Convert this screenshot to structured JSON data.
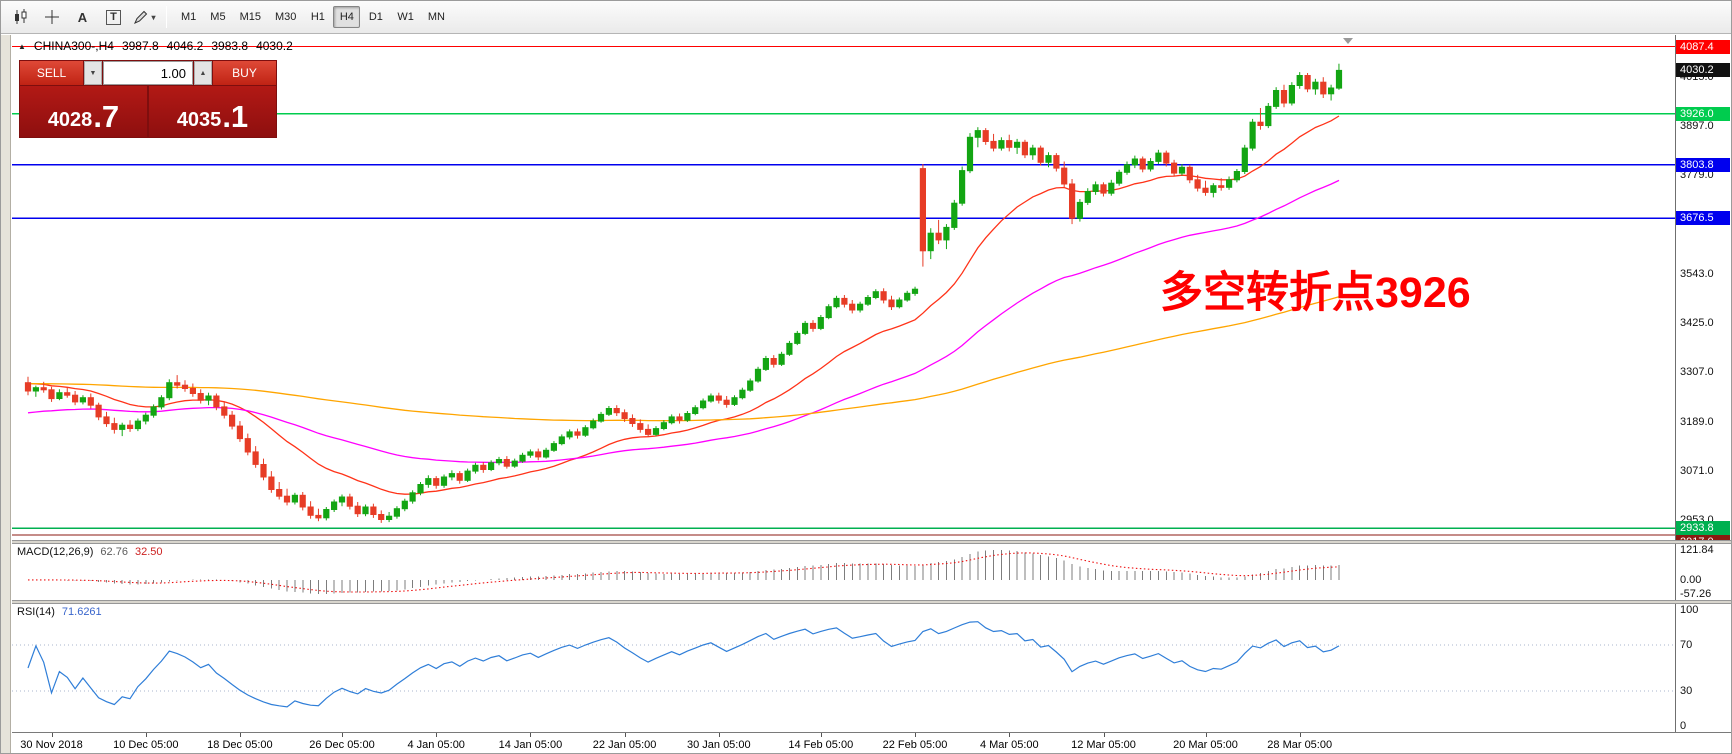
{
  "toolbar": {
    "icons": [
      {
        "name": "candlestick-chart-icon",
        "type": "candles"
      },
      {
        "name": "crosshair-icon",
        "type": "crosshair"
      },
      {
        "name": "text-annotation-icon",
        "type": "letter",
        "glyph": "A"
      },
      {
        "name": "text-label-icon",
        "type": "boxed-letter",
        "glyph": "T"
      },
      {
        "name": "drawing-tools-icon",
        "type": "pen",
        "dropdown": "▾"
      }
    ],
    "timeframes": [
      "M1",
      "M5",
      "M15",
      "M30",
      "H1",
      "H4",
      "D1",
      "W1",
      "MN"
    ],
    "active_timeframe": "H4"
  },
  "chart": {
    "header": {
      "arrow_glyph": "▲",
      "symbol_period": "CHINA300-,H4",
      "open": "3987.8",
      "high": "4046.2",
      "low": "3983.8",
      "close": "4030.2"
    },
    "trade_panel": {
      "sell_label": "SELL",
      "buy_label": "BUY",
      "volume": "1.00",
      "down_glyph": "▼",
      "up_glyph": "▲",
      "bid_main": "4028",
      "bid_big": ".7",
      "ask_main": "4035",
      "ask_big": ".1"
    }
  },
  "chart_data": {
    "type": "candlestick",
    "symbol": "CHINA300-",
    "timeframe": "H4",
    "candle_colors": {
      "up": "#13a513",
      "down": "#e73c26"
    },
    "current_price": {
      "v": 4030.2,
      "label": "4030.2",
      "bg": "#111111"
    },
    "annotation": {
      "text": "多空转折点3926",
      "color": "#ff0000"
    },
    "horizontal_lines": [
      {
        "v": 4087.4,
        "label": "4087.4",
        "color": "#ff0000",
        "w": 1.2
      },
      {
        "v": 3926.0,
        "label": "3926.0",
        "color": "#00cc4e",
        "w": 1.5
      },
      {
        "v": 3803.8,
        "label": "3803.8",
        "color": "#0000ee",
        "w": 1.5
      },
      {
        "v": 3676.5,
        "label": "3676.5",
        "color": "#0000ee",
        "w": 1.5
      },
      {
        "v": 2933.8,
        "label": "2933.8",
        "color": "#00b050",
        "w": 1.5
      },
      {
        "v": 2917.0,
        "label": "2917.0",
        "color": "#8b1a10",
        "w": 1.2
      }
    ],
    "y_axis": {
      "visible_range": [
        2905,
        4115
      ],
      "ticks": [
        {
          "v": 4015.0,
          "label": "4015.0"
        },
        {
          "v": 3897.0,
          "label": "3897.0"
        },
        {
          "v": 3779.0,
          "label": "3779.0"
        },
        {
          "v": 3543.0,
          "label": "3543.0"
        },
        {
          "v": 3425.0,
          "label": "3425.0"
        },
        {
          "v": 3307.0,
          "label": "3307.0"
        },
        {
          "v": 3189.0,
          "label": "3189.0"
        },
        {
          "v": 3071.0,
          "label": "3071.0"
        },
        {
          "v": 2953.0,
          "label": "2953.0"
        }
      ]
    },
    "x_axis": {
      "ticks": [
        {
          "label": "30 Nov 2018",
          "i": 3
        },
        {
          "label": "10 Dec 05:00",
          "i": 15
        },
        {
          "label": "18 Dec 05:00",
          "i": 27
        },
        {
          "label": "26 Dec 05:00",
          "i": 40
        },
        {
          "label": "4 Jan 05:00",
          "i": 52
        },
        {
          "label": "14 Jan 05:00",
          "i": 64
        },
        {
          "label": "22 Jan 05:00",
          "i": 76
        },
        {
          "label": "30 Jan 05:00",
          "i": 88
        },
        {
          "label": "14 Feb 05:00",
          "i": 101
        },
        {
          "label": "22 Feb 05:00",
          "i": 113
        },
        {
          "label": "4 Mar 05:00",
          "i": 125
        },
        {
          "label": "12 Mar 05:00",
          "i": 137
        },
        {
          "label": "20 Mar 05:00",
          "i": 150
        },
        {
          "label": "28 Mar 05:00",
          "i": 162
        }
      ]
    },
    "moving_averages": [
      {
        "name": "ma-fast-red",
        "period": 20,
        "seed": 3282,
        "color": "#ff3319"
      },
      {
        "name": "ma-mid-magenta",
        "period": 60,
        "seed": 3208,
        "color": "#ff00ff"
      },
      {
        "name": "ma-slow-orange",
        "period": 200,
        "seed": 3280,
        "color": "#ffa500"
      }
    ],
    "candles": [
      [
        3282,
        3296,
        3252,
        3262
      ],
      [
        3262,
        3275,
        3248,
        3270
      ],
      [
        3270,
        3284,
        3258,
        3265
      ],
      [
        3265,
        3272,
        3236,
        3244
      ],
      [
        3244,
        3266,
        3240,
        3258
      ],
      [
        3258,
        3270,
        3246,
        3252
      ],
      [
        3252,
        3262,
        3228,
        3236
      ],
      [
        3236,
        3252,
        3230,
        3246
      ],
      [
        3246,
        3256,
        3220,
        3228
      ],
      [
        3228,
        3234,
        3192,
        3200
      ],
      [
        3200,
        3212,
        3176,
        3184
      ],
      [
        3184,
        3198,
        3160,
        3170
      ],
      [
        3170,
        3186,
        3154,
        3180
      ],
      [
        3180,
        3192,
        3164,
        3172
      ],
      [
        3172,
        3196,
        3166,
        3190
      ],
      [
        3190,
        3210,
        3182,
        3204
      ],
      [
        3204,
        3230,
        3198,
        3224
      ],
      [
        3224,
        3252,
        3218,
        3246
      ],
      [
        3246,
        3290,
        3240,
        3282
      ],
      [
        3282,
        3300,
        3268,
        3276
      ],
      [
        3276,
        3288,
        3260,
        3268
      ],
      [
        3268,
        3280,
        3248,
        3256
      ],
      [
        3256,
        3266,
        3232,
        3240
      ],
      [
        3240,
        3258,
        3228,
        3250
      ],
      [
        3250,
        3256,
        3216,
        3224
      ],
      [
        3224,
        3236,
        3196,
        3204
      ],
      [
        3204,
        3214,
        3170,
        3178
      ],
      [
        3178,
        3190,
        3140,
        3148
      ],
      [
        3148,
        3160,
        3108,
        3116
      ],
      [
        3116,
        3130,
        3078,
        3086
      ],
      [
        3086,
        3100,
        3048,
        3056
      ],
      [
        3056,
        3070,
        3018,
        3026
      ],
      [
        3026,
        3044,
        3002,
        3010
      ],
      [
        3010,
        3028,
        2988,
        2996
      ],
      [
        2996,
        3018,
        2990,
        3012
      ],
      [
        3012,
        3020,
        2976,
        2984
      ],
      [
        2984,
        2998,
        2956,
        2964
      ],
      [
        2964,
        2980,
        2950,
        2958
      ],
      [
        2958,
        2984,
        2952,
        2978
      ],
      [
        2978,
        3002,
        2972,
        2996
      ],
      [
        2996,
        3014,
        2986,
        3008
      ],
      [
        3008,
        3016,
        2978,
        2986
      ],
      [
        2986,
        2996,
        2960,
        2968
      ],
      [
        2968,
        2990,
        2962,
        2984
      ],
      [
        2984,
        2992,
        2958,
        2966
      ],
      [
        2966,
        2976,
        2946,
        2954
      ],
      [
        2954,
        2972,
        2948,
        2962
      ],
      [
        2962,
        2986,
        2956,
        2980
      ],
      [
        2980,
        3004,
        2974,
        2998
      ],
      [
        2998,
        3024,
        2992,
        3018
      ],
      [
        3018,
        3044,
        3012,
        3038
      ],
      [
        3038,
        3060,
        3030,
        3052
      ],
      [
        3052,
        3058,
        3028,
        3036
      ],
      [
        3036,
        3062,
        3030,
        3056
      ],
      [
        3056,
        3072,
        3048,
        3064
      ],
      [
        3064,
        3070,
        3040,
        3048
      ],
      [
        3048,
        3076,
        3044,
        3070
      ],
      [
        3070,
        3090,
        3064,
        3084
      ],
      [
        3084,
        3092,
        3066,
        3074
      ],
      [
        3074,
        3096,
        3070,
        3090
      ],
      [
        3090,
        3104,
        3084,
        3098
      ],
      [
        3098,
        3106,
        3076,
        3082
      ],
      [
        3082,
        3100,
        3078,
        3094
      ],
      [
        3094,
        3114,
        3090,
        3108
      ],
      [
        3108,
        3122,
        3102,
        3116
      ],
      [
        3116,
        3124,
        3096,
        3104
      ],
      [
        3104,
        3126,
        3100,
        3120
      ],
      [
        3120,
        3142,
        3116,
        3136
      ],
      [
        3136,
        3158,
        3132,
        3152
      ],
      [
        3152,
        3170,
        3146,
        3164
      ],
      [
        3164,
        3172,
        3148,
        3156
      ],
      [
        3156,
        3180,
        3152,
        3174
      ],
      [
        3174,
        3196,
        3170,
        3190
      ],
      [
        3190,
        3212,
        3186,
        3206
      ],
      [
        3206,
        3226,
        3202,
        3220
      ],
      [
        3220,
        3228,
        3202,
        3210
      ],
      [
        3210,
        3218,
        3188,
        3196
      ],
      [
        3196,
        3206,
        3176,
        3184
      ],
      [
        3184,
        3194,
        3162,
        3170
      ],
      [
        3170,
        3182,
        3152,
        3158
      ],
      [
        3158,
        3178,
        3154,
        3172
      ],
      [
        3172,
        3192,
        3168,
        3186
      ],
      [
        3186,
        3206,
        3182,
        3200
      ],
      [
        3200,
        3208,
        3184,
        3192
      ],
      [
        3192,
        3214,
        3188,
        3208
      ],
      [
        3208,
        3228,
        3204,
        3222
      ],
      [
        3222,
        3244,
        3218,
        3238
      ],
      [
        3238,
        3256,
        3234,
        3250
      ],
      [
        3250,
        3258,
        3232,
        3240
      ],
      [
        3240,
        3250,
        3222,
        3230
      ],
      [
        3230,
        3252,
        3226,
        3246
      ],
      [
        3246,
        3270,
        3242,
        3264
      ],
      [
        3264,
        3292,
        3260,
        3286
      ],
      [
        3286,
        3320,
        3282,
        3314
      ],
      [
        3314,
        3346,
        3310,
        3340
      ],
      [
        3340,
        3348,
        3318,
        3326
      ],
      [
        3326,
        3356,
        3322,
        3350
      ],
      [
        3350,
        3382,
        3346,
        3376
      ],
      [
        3376,
        3406,
        3372,
        3400
      ],
      [
        3400,
        3430,
        3396,
        3424
      ],
      [
        3424,
        3432,
        3404,
        3412
      ],
      [
        3412,
        3444,
        3408,
        3438
      ],
      [
        3438,
        3470,
        3434,
        3464
      ],
      [
        3464,
        3490,
        3460,
        3484
      ],
      [
        3484,
        3492,
        3462,
        3470
      ],
      [
        3470,
        3480,
        3448,
        3456
      ],
      [
        3456,
        3476,
        3450,
        3470
      ],
      [
        3470,
        3492,
        3466,
        3486
      ],
      [
        3486,
        3506,
        3482,
        3500
      ],
      [
        3500,
        3508,
        3472,
        3480
      ],
      [
        3480,
        3490,
        3456,
        3464
      ],
      [
        3464,
        3486,
        3460,
        3480
      ],
      [
        3480,
        3502,
        3476,
        3496
      ],
      [
        3496,
        3512,
        3490,
        3506
      ],
      [
        3795,
        3806,
        3560,
        3598
      ],
      [
        3598,
        3652,
        3578,
        3640
      ],
      [
        3640,
        3672,
        3614,
        3624
      ],
      [
        3624,
        3662,
        3602,
        3654
      ],
      [
        3654,
        3720,
        3648,
        3712
      ],
      [
        3712,
        3800,
        3706,
        3790
      ],
      [
        3790,
        3880,
        3784,
        3870
      ],
      [
        3870,
        3894,
        3846,
        3886
      ],
      [
        3886,
        3892,
        3852,
        3860
      ],
      [
        3860,
        3878,
        3836,
        3844
      ],
      [
        3844,
        3870,
        3838,
        3862
      ],
      [
        3862,
        3876,
        3836,
        3846
      ],
      [
        3846,
        3866,
        3830,
        3858
      ],
      [
        3858,
        3864,
        3820,
        3828
      ],
      [
        3828,
        3852,
        3816,
        3844
      ],
      [
        3844,
        3850,
        3802,
        3810
      ],
      [
        3810,
        3834,
        3798,
        3826
      ],
      [
        3826,
        3832,
        3788,
        3796
      ],
      [
        3796,
        3812,
        3750,
        3758
      ],
      [
        3758,
        3770,
        3662,
        3676
      ],
      [
        3676,
        3722,
        3668,
        3714
      ],
      [
        3714,
        3748,
        3708,
        3740
      ],
      [
        3740,
        3764,
        3732,
        3756
      ],
      [
        3756,
        3762,
        3728,
        3736
      ],
      [
        3736,
        3768,
        3730,
        3760
      ],
      [
        3760,
        3792,
        3754,
        3786
      ],
      [
        3786,
        3812,
        3780,
        3804
      ],
      [
        3804,
        3826,
        3796,
        3818
      ],
      [
        3818,
        3824,
        3786,
        3794
      ],
      [
        3794,
        3820,
        3788,
        3812
      ],
      [
        3812,
        3840,
        3806,
        3832
      ],
      [
        3832,
        3838,
        3800,
        3808
      ],
      [
        3808,
        3816,
        3776,
        3784
      ],
      [
        3784,
        3806,
        3778,
        3798
      ],
      [
        3798,
        3804,
        3760,
        3768
      ],
      [
        3768,
        3780,
        3740,
        3748
      ],
      [
        3748,
        3766,
        3730,
        3738
      ],
      [
        3738,
        3760,
        3726,
        3754
      ],
      [
        3754,
        3772,
        3742,
        3750
      ],
      [
        3750,
        3776,
        3744,
        3768
      ],
      [
        3768,
        3794,
        3762,
        3788
      ],
      [
        3788,
        3852,
        3782,
        3844
      ],
      [
        3844,
        3914,
        3838,
        3906
      ],
      [
        3906,
        3940,
        3888,
        3898
      ],
      [
        3898,
        3952,
        3892,
        3944
      ],
      [
        3944,
        3990,
        3938,
        3982
      ],
      [
        3982,
        3996,
        3942,
        3952
      ],
      [
        3952,
        4002,
        3946,
        3994
      ],
      [
        3994,
        4026,
        3986,
        4018
      ],
      [
        4018,
        4024,
        3978,
        3986
      ],
      [
        3986,
        4010,
        3972,
        4002
      ],
      [
        4002,
        4014,
        3964,
        3974
      ],
      [
        3974,
        3996,
        3958,
        3988
      ],
      [
        3987.8,
        4046.2,
        3983.8,
        4030.2
      ]
    ],
    "indicators": {
      "macd": {
        "label": "MACD(12,26,9)",
        "params": [
          12,
          26,
          9
        ],
        "value_main": "62.76",
        "value_signal": "32.50",
        "axis": [
          {
            "v": 121.84,
            "label": "121.84"
          },
          {
            "v": 0,
            "label": "0.00"
          },
          {
            "v": -57.26,
            "label": "-57.26"
          }
        ],
        "histogram_color": "#7d7d7d",
        "signal_color": "#ee1111"
      },
      "rsi": {
        "label": "RSI(14)",
        "period": 14,
        "value": "71.6261",
        "axis": [
          {
            "v": 100,
            "label": "100"
          },
          {
            "v": 70,
            "label": "70"
          },
          {
            "v": 30,
            "label": "30"
          },
          {
            "v": 0,
            "label": "0"
          }
        ],
        "levels": [
          70,
          30
        ],
        "color": "#2f7ed8",
        "level_color": "#a8b4cc"
      }
    }
  }
}
